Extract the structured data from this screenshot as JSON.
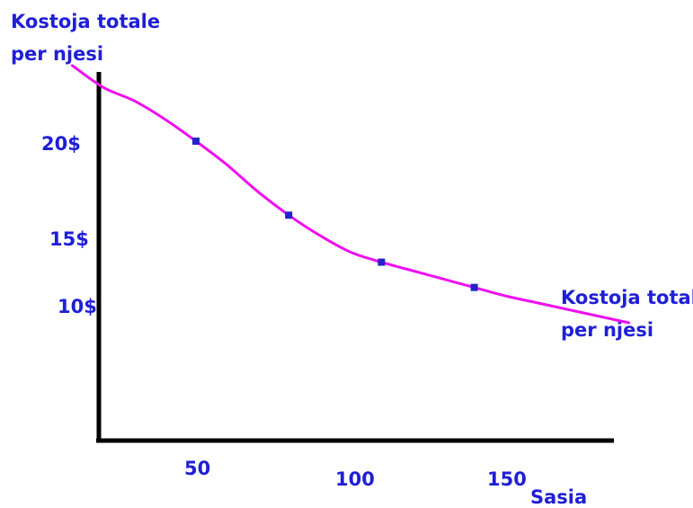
{
  "chart_data": {
    "type": "line",
    "ylabel_lines": [
      "Kostoja totale",
      "per njesi"
    ],
    "xlabel": "Sasia",
    "series_label_lines": [
      "Kostoja totale",
      "per njesi"
    ],
    "y_ticks": [
      {
        "value": 20,
        "label": "20$"
      },
      {
        "value": 15,
        "label": "15$"
      },
      {
        "value": 10,
        "label": "10$"
      }
    ],
    "x_ticks": [
      {
        "value": 50,
        "label": "50"
      },
      {
        "value": 100,
        "label": "100"
      },
      {
        "value": 150,
        "label": "150"
      }
    ],
    "curve": {
      "x": [
        10,
        20,
        30,
        40,
        50,
        60,
        70,
        80,
        90,
        100,
        110,
        120,
        130,
        140,
        150,
        160,
        170,
        180,
        190
      ],
      "y": [
        24.5,
        23.2,
        22.4,
        21.3,
        20.0,
        18.6,
        17.0,
        15.6,
        14.4,
        13.4,
        12.8,
        12.3,
        11.8,
        11.3,
        10.8,
        10.4,
        10.0,
        9.6,
        9.2
      ]
    },
    "markers": {
      "x": [
        50,
        80,
        110,
        140
      ],
      "y": [
        20.0,
        15.6,
        12.8,
        11.3
      ]
    },
    "colors": {
      "curve": "#ee10ee",
      "marker": "#2222cc",
      "text": "#1f1fd6",
      "axes": "#000000"
    }
  }
}
